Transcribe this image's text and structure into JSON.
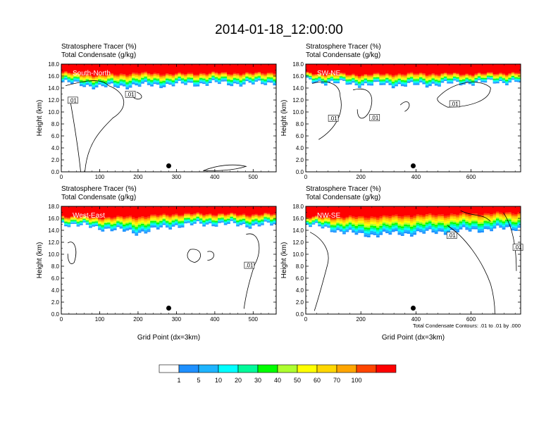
{
  "figure": {
    "title": "2014-01-18_12:00:00",
    "contour_note": "Total Condensate Contours: .01 to .01 by .000"
  },
  "panels": [
    {
      "subtitle_1": "Stratosphere Tracer   (%)",
      "subtitle_2": "Total Condensate   (g/kg)",
      "label": "South-North",
      "xlabel": "",
      "ylabel": "Height (km)"
    },
    {
      "subtitle_1": "Stratosphere Tracer   (%)",
      "subtitle_2": "Total Condensate   (g/kg)",
      "label": "SW-NE",
      "xlabel": "",
      "ylabel": "Height (km)"
    },
    {
      "subtitle_1": "Stratosphere Tracer   (%)",
      "subtitle_2": "Total Condensate   (g/kg)",
      "label": "West-East",
      "xlabel": "Grid Point (dx=3km)",
      "ylabel": "Height (km)"
    },
    {
      "subtitle_1": "Stratosphere Tracer   (%)",
      "subtitle_2": "Total Condensate   (g/kg)",
      "label": "NW-SE",
      "xlabel": "Grid Point (dx=3km)",
      "ylabel": "Height (km)"
    }
  ],
  "colorbar": {
    "labels": [
      "1",
      "5",
      "10",
      "20",
      "30",
      "40",
      "50",
      "60",
      "70",
      "100"
    ],
    "colors": [
      "#ffffff",
      "#1e90ff",
      "#1eb4ff",
      "#00ffff",
      "#00fa9a",
      "#00ff00",
      "#adff2f",
      "#ffff00",
      "#ffd700",
      "#ffa500",
      "#ff4500",
      "#ff0000"
    ]
  },
  "chart_data": [
    {
      "type": "heatmap",
      "name": "South-North",
      "xlim": [
        0,
        560
      ],
      "ylim": [
        0,
        18
      ],
      "xticks": [
        0,
        100,
        200,
        300,
        400,
        500
      ],
      "yticks": [
        0,
        2,
        4,
        6,
        8,
        10,
        12,
        14,
        16,
        18
      ],
      "tracer_profile": {
        "x": [
          0,
          100,
          200,
          300,
          400,
          500,
          560
        ],
        "base_km": [
          15.0,
          14.2,
          14.4,
          14.6,
          14.8,
          14.7,
          15.0
        ],
        "top_km": [
          16.8,
          16.3,
          16.7,
          16.5,
          16.7,
          16.6,
          16.8
        ]
      },
      "contour_labels": [
        {
          "text": ".01",
          "x": 30,
          "y": 11.9
        },
        {
          "text": ".01",
          "x": 180,
          "y": 12.9
        }
      ],
      "marker": {
        "x": 280,
        "y": 1.0
      }
    },
    {
      "type": "heatmap",
      "name": "SW-NE",
      "xlim": [
        0,
        780
      ],
      "ylim": [
        0,
        18
      ],
      "xticks": [
        0,
        200,
        400,
        600
      ],
      "yticks": [
        0,
        2,
        4,
        6,
        8,
        10,
        12,
        14,
        16,
        18
      ],
      "tracer_profile": {
        "x": [
          0,
          200,
          400,
          600,
          780
        ],
        "base_km": [
          15.2,
          14.6,
          14.5,
          14.9,
          15.1
        ],
        "top_km": [
          16.6,
          16.4,
          16.6,
          16.5,
          16.7
        ]
      },
      "contour_labels": [
        {
          "text": ".01",
          "x": 100,
          "y": 8.9
        },
        {
          "text": ".01",
          "x": 250,
          "y": 9.0
        },
        {
          "text": ".01",
          "x": 540,
          "y": 11.3
        }
      ],
      "marker": {
        "x": 390,
        "y": 1.0
      }
    },
    {
      "type": "heatmap",
      "name": "West-East",
      "xlim": [
        0,
        560
      ],
      "ylim": [
        0,
        18
      ],
      "xticks": [
        0,
        100,
        200,
        300,
        400,
        500
      ],
      "yticks": [
        0,
        2,
        4,
        6,
        8,
        10,
        12,
        14,
        16,
        18
      ],
      "tracer_profile": {
        "x": [
          0,
          100,
          200,
          300,
          400,
          500,
          560
        ],
        "base_km": [
          15.2,
          14.4,
          13.6,
          14.8,
          15.1,
          14.8,
          15.0
        ],
        "top_km": [
          16.5,
          16.3,
          16.5,
          16.9,
          16.9,
          16.8,
          16.9
        ]
      },
      "contour_labels": [
        {
          "text": ".01",
          "x": 490,
          "y": 8.1
        }
      ],
      "marker": {
        "x": 280,
        "y": 1.0
      }
    },
    {
      "type": "heatmap",
      "name": "NW-SE",
      "xlim": [
        0,
        780
      ],
      "ylim": [
        0,
        18
      ],
      "xticks": [
        0,
        200,
        400,
        600
      ],
      "yticks": [
        0,
        2,
        4,
        6,
        8,
        10,
        12,
        14,
        16,
        18
      ],
      "tracer_profile": {
        "x": [
          0,
          200,
          400,
          600,
          780
        ],
        "base_km": [
          15.0,
          13.2,
          13.5,
          14.0,
          14.4
        ],
        "top_km": [
          16.3,
          16.5,
          16.8,
          17.0,
          17.2
        ]
      },
      "contour_labels": [
        {
          "text": ".01",
          "x": 530,
          "y": 13.1
        },
        {
          "text": ".01",
          "x": 770,
          "y": 11.1
        }
      ],
      "marker": {
        "x": 390,
        "y": 1.0
      }
    }
  ]
}
